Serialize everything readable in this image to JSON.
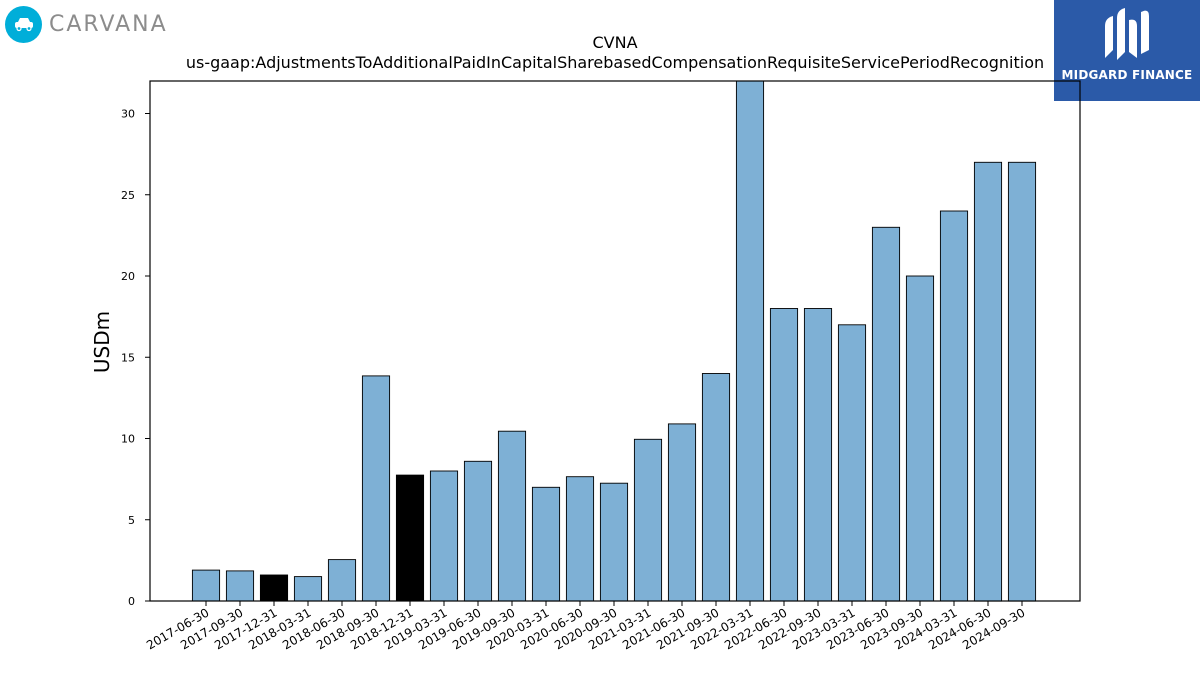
{
  "brand_left": {
    "name": "CARVANA",
    "icon": "car-icon",
    "color": "#00aed9"
  },
  "brand_right": {
    "name": "MIDGARD FINANCE",
    "icon": "midgard-logo-icon",
    "color": "#2b5aa8"
  },
  "chart_data": {
    "type": "bar",
    "title": "CVNA",
    "subtitle": "us-gaap:AdjustmentsToAdditionalPaidInCapitalSharebasedCompensationRequisiteServicePeriodRecognition",
    "xlabel": "",
    "ylabel": "USDm",
    "ylim": [
      0,
      32
    ],
    "yticks": [
      0,
      5,
      10,
      15,
      20,
      25,
      30
    ],
    "grid": false,
    "categories": [
      "2017-06-30",
      "2017-09-30",
      "2017-12-31",
      "2018-03-31",
      "2018-06-30",
      "2018-09-30",
      "2018-12-31",
      "2019-03-31",
      "2019-06-30",
      "2019-09-30",
      "2020-03-31",
      "2020-06-30",
      "2020-09-30",
      "2021-03-31",
      "2021-06-30",
      "2021-09-30",
      "2022-03-31",
      "2022-06-30",
      "2022-09-30",
      "2023-03-31",
      "2023-06-30",
      "2023-09-30",
      "2024-03-31",
      "2024-06-30",
      "2024-09-30"
    ],
    "values": [
      1.9,
      1.85,
      1.6,
      1.5,
      2.55,
      13.85,
      7.75,
      8.0,
      8.6,
      10.45,
      7.0,
      7.65,
      7.25,
      9.95,
      10.9,
      14.0,
      32.2,
      18.0,
      18.0,
      17.0,
      23.0,
      20.0,
      24.0,
      27.0,
      27.0
    ],
    "colors": {
      "default": "#7eb0d5",
      "highlight": "#000000",
      "edge": "#000000"
    },
    "highlighted_categories": [
      "2017-12-31",
      "2018-12-31"
    ]
  }
}
